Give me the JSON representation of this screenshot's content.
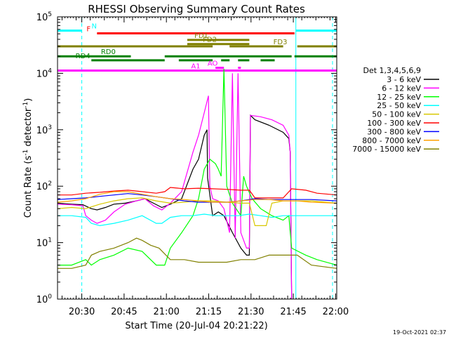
{
  "chart_data": {
    "type": "line",
    "title": "RHESSI Observing Summary Count Rates",
    "xlabel": "Start Time (20-Jul-04 20:21:22)",
    "ylabel_main": "Count Rate (s",
    "ylabel_sup": "-1",
    "ylabel_tail": " detector",
    "ylabel_end": ")",
    "footer": "19-Oct-2021 02:37",
    "y_scale": "log",
    "ylim": [
      1,
      100000
    ],
    "xlim_minutes": [
      0,
      99
    ],
    "x_ticks": [
      {
        "label": "20:30",
        "min": 8.6
      },
      {
        "label": "20:45",
        "min": 23.6
      },
      {
        "label": "21:00",
        "min": 38.6
      },
      {
        "label": "21:15",
        "min": 53.6
      },
      {
        "label": "21:30",
        "min": 68.6
      },
      {
        "label": "21:45",
        "min": 83.6
      },
      {
        "label": "22:00",
        "min": 98.6
      }
    ],
    "y_ticks": [
      {
        "base": "10",
        "exp": "0",
        "value": 1
      },
      {
        "base": "10",
        "exp": "1",
        "value": 10
      },
      {
        "base": "10",
        "exp": "2",
        "value": 100
      },
      {
        "base": "10",
        "exp": "3",
        "value": 1000
      },
      {
        "base": "10",
        "exp": "4",
        "value": 10000
      },
      {
        "base": "10",
        "exp": "5",
        "value": 100000
      }
    ],
    "legend_title": "Det 1,3,4,5,6,9",
    "series": [
      {
        "name": "3 - 6 keV",
        "color": "#000000",
        "points": [
          [
            0,
            50
          ],
          [
            5,
            48
          ],
          [
            9,
            47
          ],
          [
            12,
            40
          ],
          [
            14,
            38
          ],
          [
            17,
            42
          ],
          [
            20,
            48
          ],
          [
            24,
            50
          ],
          [
            28,
            55
          ],
          [
            31,
            60
          ],
          [
            34,
            50
          ],
          [
            37,
            42
          ],
          [
            40,
            48
          ],
          [
            44,
            60
          ],
          [
            48,
            200
          ],
          [
            50,
            300
          ],
          [
            52,
            800
          ],
          [
            53,
            1000
          ],
          [
            53.2,
            140
          ],
          [
            55,
            30
          ],
          [
            57,
            35
          ],
          [
            59,
            30
          ],
          [
            62,
            15
          ],
          [
            65,
            8
          ],
          [
            67,
            6
          ],
          [
            68,
            6
          ],
          [
            68.4,
            1800
          ],
          [
            70,
            1500
          ],
          [
            75,
            1200
          ],
          [
            80,
            900
          ],
          [
            82,
            700
          ],
          [
            82.5,
            400
          ],
          [
            83,
            1
          ]
        ]
      },
      {
        "name": "6 - 12 keV",
        "color": "#ff00ff",
        "points": [
          [
            0,
            48
          ],
          [
            5,
            47
          ],
          [
            9,
            45
          ],
          [
            10,
            30
          ],
          [
            12,
            25
          ],
          [
            14,
            22
          ],
          [
            17,
            25
          ],
          [
            20,
            35
          ],
          [
            24,
            48
          ],
          [
            28,
            55
          ],
          [
            31,
            60
          ],
          [
            34,
            45
          ],
          [
            37,
            38
          ],
          [
            40,
            50
          ],
          [
            44,
            80
          ],
          [
            48,
            400
          ],
          [
            50,
            800
          ],
          [
            52,
            2000
          ],
          [
            53.5,
            4000
          ],
          [
            54,
            100
          ],
          [
            55,
            60
          ],
          [
            57,
            55
          ],
          [
            59,
            40
          ],
          [
            61,
            15
          ],
          [
            62,
            10000
          ],
          [
            63,
            12
          ],
          [
            64,
            10000
          ],
          [
            65,
            15
          ],
          [
            67,
            8
          ],
          [
            68,
            8
          ],
          [
            68.4,
            1800
          ],
          [
            72,
            1700
          ],
          [
            76,
            1500
          ],
          [
            80,
            1200
          ],
          [
            82,
            800
          ],
          [
            82.5,
            400
          ],
          [
            83,
            1
          ]
        ]
      },
      {
        "name": "12 - 25 keV",
        "color": "#00ff00",
        "points": [
          [
            0,
            4
          ],
          [
            5,
            4
          ],
          [
            10,
            5
          ],
          [
            12,
            4
          ],
          [
            15,
            5
          ],
          [
            20,
            6
          ],
          [
            25,
            8
          ],
          [
            30,
            7
          ],
          [
            35,
            4
          ],
          [
            38,
            4
          ],
          [
            40,
            8
          ],
          [
            44,
            15
          ],
          [
            48,
            30
          ],
          [
            50,
            60
          ],
          [
            52,
            200
          ],
          [
            54,
            300
          ],
          [
            56,
            250
          ],
          [
            57,
            200
          ],
          [
            58,
            150
          ],
          [
            59,
            12000
          ],
          [
            60,
            100
          ],
          [
            62,
            50
          ],
          [
            65,
            30
          ],
          [
            66,
            150
          ],
          [
            67,
            100
          ],
          [
            69,
            60
          ],
          [
            72,
            40
          ],
          [
            76,
            30
          ],
          [
            80,
            25
          ],
          [
            82,
            30
          ],
          [
            83,
            8
          ],
          [
            88,
            6
          ],
          [
            92,
            5
          ],
          [
            99,
            4
          ]
        ]
      },
      {
        "name": "25 - 50 keV",
        "color": "#00ffff",
        "points": [
          [
            0,
            30
          ],
          [
            5,
            30
          ],
          [
            10,
            28
          ],
          [
            12,
            22
          ],
          [
            15,
            20
          ],
          [
            20,
            22
          ],
          [
            25,
            25
          ],
          [
            30,
            30
          ],
          [
            35,
            22
          ],
          [
            37,
            22
          ],
          [
            40,
            28
          ],
          [
            44,
            30
          ],
          [
            48,
            30
          ],
          [
            52,
            32
          ],
          [
            56,
            30
          ],
          [
            60,
            30
          ],
          [
            64,
            30
          ],
          [
            68,
            32
          ],
          [
            72,
            30
          ],
          [
            76,
            28
          ],
          [
            80,
            30
          ],
          [
            85,
            30
          ],
          [
            90,
            30
          ],
          [
            99,
            30
          ]
        ]
      },
      {
        "name": "50 - 100 keV",
        "color": "#d8c800",
        "points": [
          [
            0,
            40
          ],
          [
            5,
            42
          ],
          [
            10,
            40
          ],
          [
            15,
            48
          ],
          [
            20,
            55
          ],
          [
            25,
            60
          ],
          [
            30,
            62
          ],
          [
            35,
            55
          ],
          [
            40,
            50
          ],
          [
            45,
            52
          ],
          [
            50,
            55
          ],
          [
            55,
            55
          ],
          [
            60,
            52
          ],
          [
            65,
            50
          ],
          [
            68,
            50
          ],
          [
            70,
            20
          ],
          [
            74,
            20
          ],
          [
            76,
            50
          ],
          [
            80,
            55
          ],
          [
            85,
            55
          ],
          [
            90,
            55
          ],
          [
            99,
            50
          ]
        ]
      },
      {
        "name": "100 - 300 keV",
        "color": "#ff0000",
        "points": [
          [
            0,
            70
          ],
          [
            5,
            70
          ],
          [
            10,
            75
          ],
          [
            15,
            78
          ],
          [
            20,
            82
          ],
          [
            25,
            85
          ],
          [
            30,
            80
          ],
          [
            35,
            75
          ],
          [
            38,
            80
          ],
          [
            40,
            95
          ],
          [
            45,
            90
          ],
          [
            50,
            92
          ],
          [
            55,
            90
          ],
          [
            60,
            88
          ],
          [
            65,
            85
          ],
          [
            68,
            85
          ],
          [
            70,
            62
          ],
          [
            75,
            62
          ],
          [
            80,
            62
          ],
          [
            83,
            90
          ],
          [
            88,
            85
          ],
          [
            92,
            75
          ],
          [
            99,
            70
          ]
        ]
      },
      {
        "name": "300 - 800 keV",
        "color": "#0000ff",
        "points": [
          [
            0,
            58
          ],
          [
            5,
            60
          ],
          [
            10,
            62
          ],
          [
            15,
            66
          ],
          [
            20,
            70
          ],
          [
            25,
            74
          ],
          [
            30,
            70
          ],
          [
            35,
            65
          ],
          [
            40,
            60
          ],
          [
            45,
            55
          ],
          [
            50,
            52
          ],
          [
            55,
            52
          ],
          [
            60,
            52
          ],
          [
            65,
            55
          ],
          [
            70,
            60
          ],
          [
            75,
            58
          ],
          [
            80,
            58
          ],
          [
            85,
            58
          ],
          [
            90,
            58
          ],
          [
            99,
            55
          ]
        ]
      },
      {
        "name": "800 - 7000 keV",
        "color": "#ffa000",
        "points": [
          [
            0,
            52
          ],
          [
            5,
            55
          ],
          [
            10,
            60
          ],
          [
            15,
            72
          ],
          [
            20,
            80
          ],
          [
            25,
            80
          ],
          [
            30,
            72
          ],
          [
            35,
            65
          ],
          [
            40,
            60
          ],
          [
            45,
            58
          ],
          [
            50,
            55
          ],
          [
            55,
            52
          ],
          [
            60,
            52
          ],
          [
            65,
            55
          ],
          [
            70,
            58
          ],
          [
            75,
            58
          ],
          [
            80,
            55
          ],
          [
            85,
            55
          ],
          [
            90,
            52
          ],
          [
            99,
            50
          ]
        ]
      },
      {
        "name": "7000 - 15000 keV",
        "color": "#808000",
        "points": [
          [
            0,
            3.5
          ],
          [
            5,
            3.5
          ],
          [
            10,
            4
          ],
          [
            12,
            6
          ],
          [
            15,
            7
          ],
          [
            20,
            8
          ],
          [
            25,
            10
          ],
          [
            28,
            12
          ],
          [
            30,
            11
          ],
          [
            33,
            9
          ],
          [
            36,
            8
          ],
          [
            40,
            5
          ],
          [
            45,
            5
          ],
          [
            50,
            4.5
          ],
          [
            55,
            4.5
          ],
          [
            60,
            4.5
          ],
          [
            65,
            5
          ],
          [
            70,
            5
          ],
          [
            75,
            6
          ],
          [
            80,
            6
          ],
          [
            85,
            6
          ],
          [
            90,
            4
          ],
          [
            99,
            3.5
          ]
        ]
      }
    ],
    "flags": [
      {
        "label": "N",
        "color": "#00ffff",
        "y": 57000,
        "segments": [
          [
            0,
            8.6
          ],
          [
            84.5,
            99
          ]
        ],
        "label_at": 13
      },
      {
        "label": "F",
        "color": "#ff0000",
        "y": 51000,
        "segments": [
          [
            14,
            84
          ]
        ],
        "label_at": 11
      },
      {
        "label": "FD1",
        "color": "#808000",
        "y": 39000,
        "segments": [
          [
            46,
            68
          ]
        ],
        "label_at": 51
      },
      {
        "label": "FD2",
        "color": "#808000",
        "y": 33000,
        "segments": [
          [
            46,
            68
          ]
        ],
        "label_at": 54
      },
      {
        "label": "FD3",
        "color": "#808000",
        "y": 30000,
        "segments": [
          [
            0,
            55
          ],
          [
            61,
            80
          ],
          [
            85,
            99
          ]
        ],
        "label_at": 79
      },
      {
        "label": "RD0",
        "color": "#008000",
        "y": 20000,
        "segments": [
          [
            0,
            26
          ],
          [
            38,
            83
          ],
          [
            84,
            99
          ]
        ],
        "label_at": 18
      },
      {
        "label": "RD4",
        "color": "#008000",
        "y": 17000,
        "segments": [
          [
            12,
            38
          ],
          [
            43,
            55
          ],
          [
            58,
            61
          ],
          [
            64,
            68
          ],
          [
            72,
            77
          ]
        ],
        "label_at": 9
      },
      {
        "label": "AO",
        "color": "#ff00ff",
        "y": 12500,
        "segments": [
          [
            56,
            59
          ],
          [
            64,
            65
          ]
        ],
        "label_at": 55
      },
      {
        "label": "A1",
        "color": "#ff00ff",
        "y": 11200,
        "segments": [
          [
            0,
            99
          ]
        ],
        "label_at": 49
      }
    ],
    "vlines": [
      {
        "min": 8.6,
        "color": "#00ffff",
        "dashed": true
      },
      {
        "min": 84.5,
        "color": "#00ffff",
        "dashed": false
      },
      {
        "min": 97.5,
        "color": "#00ffff",
        "dashed": true
      }
    ]
  }
}
